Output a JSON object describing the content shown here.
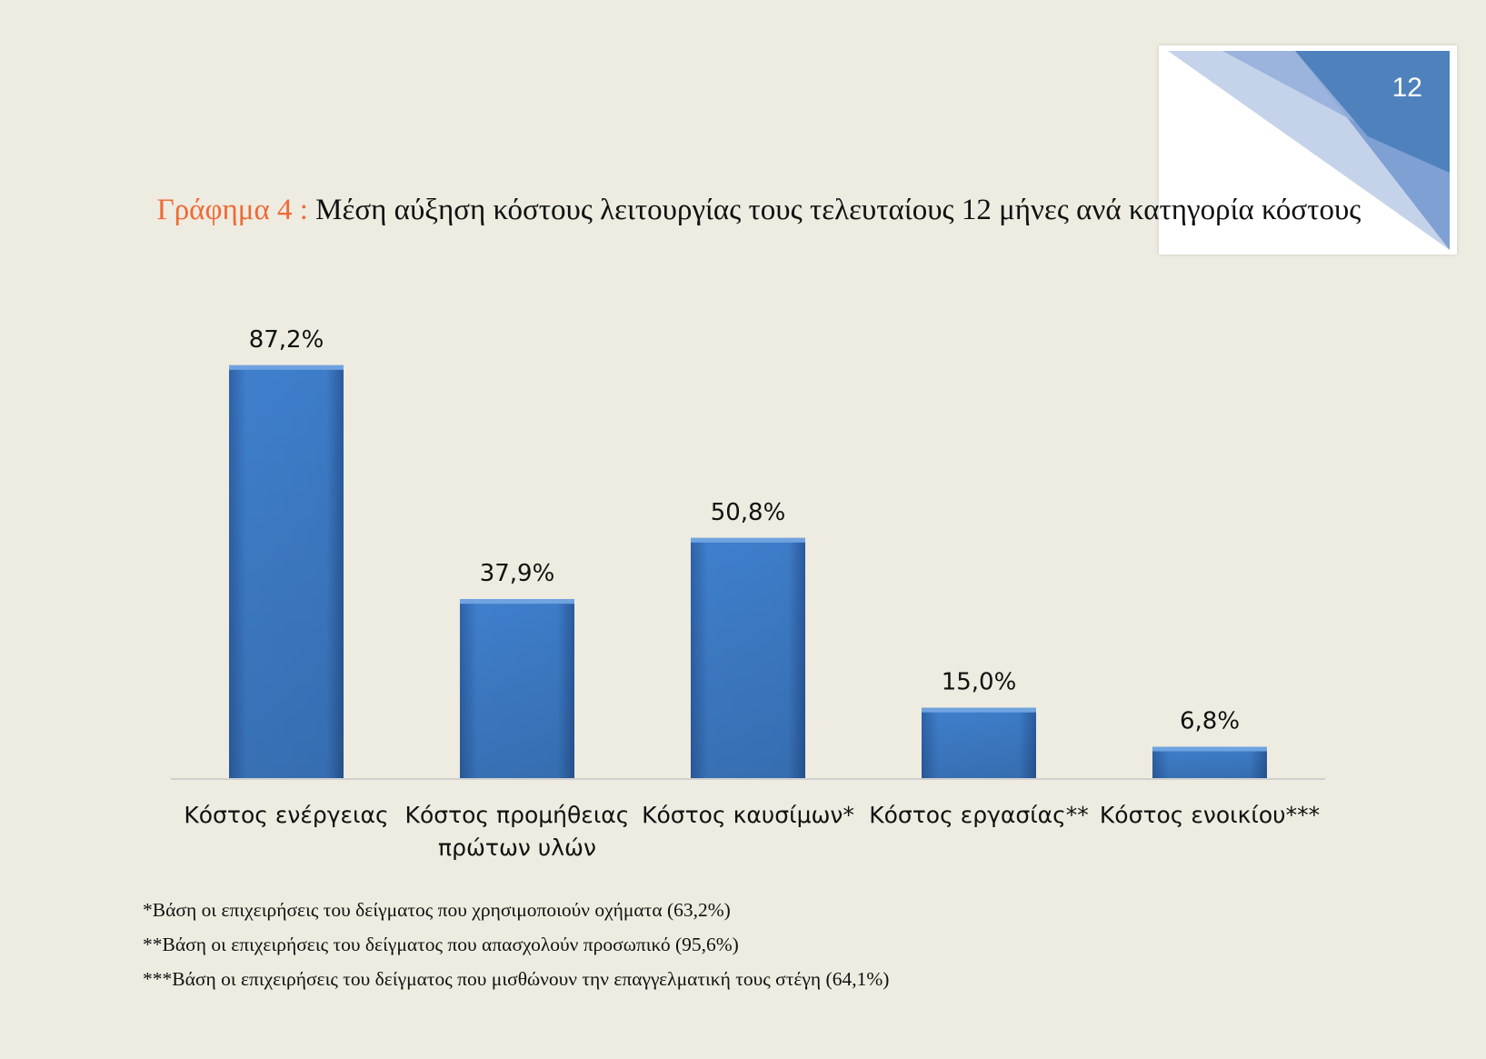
{
  "page_number": "12",
  "title": {
    "prefix": "Γράφημα 4 :",
    "text": "Μέση αύξηση κόστους λειτουργίας τους τελευταίους 12 μήνες ανά κατηγορία κόστους"
  },
  "colors": {
    "bar": "#3F7FCC",
    "title_prefix": "#EE6A35",
    "background": "#EEEBE0",
    "corner_accent": "#4F81BD"
  },
  "chart_data": {
    "type": "bar",
    "categories": [
      [
        "Κόστος ενέργειας"
      ],
      [
        "Κόστος προμήθειας",
        "πρώτων υλών"
      ],
      [
        "Κόστος καυσίμων*"
      ],
      [
        "Κόστος εργασίας**"
      ],
      [
        "Κόστος ενοικίου***"
      ]
    ],
    "values": [
      87.2,
      37.9,
      50.8,
      15.0,
      6.8
    ],
    "data_labels": [
      "87,2%",
      "37,9%",
      "50,8%",
      "15,0%",
      "6,8%"
    ],
    "ylim": [
      0,
      100
    ],
    "grid": false,
    "legend": "none"
  },
  "footnotes": [
    "*Βάση οι επιχειρήσεις του δείγματος που χρησιμοποιούν οχήματα (63,2%)",
    "**Βάση οι επιχειρήσεις του δείγματος που απασχολούν προσωπικό (95,6%)",
    "***Βάση οι επιχειρήσεις του δείγματος που μισθώνουν την επαγγελματική τους στέγη (64,1%)"
  ]
}
